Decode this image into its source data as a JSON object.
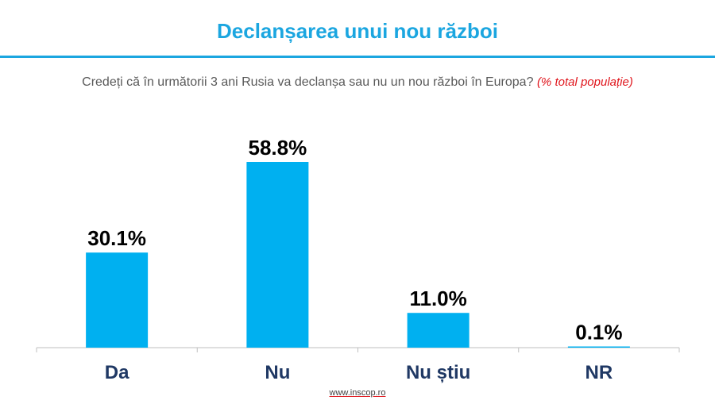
{
  "title": "Declanșarea unui nou război",
  "subtitle": {
    "question": "Credeți că în următorii 3 ani Rusia va declanșa sau nu un nou război în Europa?",
    "note": "(% total populație)"
  },
  "footer": "www.inscop.ro",
  "colors": {
    "accent": "#1ba6e0",
    "bar": "#00b0f0",
    "note": "#e0161d",
    "category_label": "#1f3864"
  },
  "chart_data": {
    "type": "bar",
    "categories": [
      "Da",
      "Nu",
      "Nu știu",
      "NR"
    ],
    "values": [
      30.1,
      58.8,
      11.0,
      0.1
    ],
    "data_labels": [
      "30.1%",
      "58.8%",
      "11.0%",
      "0.1%"
    ],
    "title": "Declanșarea unui nou război",
    "xlabel": "",
    "ylabel": "",
    "ylim": [
      0,
      60
    ],
    "grid": false,
    "legend": "none"
  }
}
